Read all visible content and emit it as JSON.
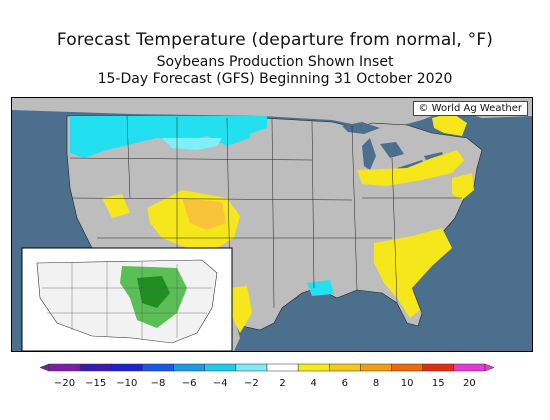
{
  "header": {
    "title": "Forecast Temperature (departure from normal, °F)",
    "subtitle": "Soybeans Production Shown Inset",
    "forecast_line": "15-Day Forecast (GFS) Beginning 31 October 2020"
  },
  "map": {
    "copyright": "© World Ag Weather",
    "colors": {
      "ocean": "#4d6f8e",
      "land_neutral": "#bdbdbd",
      "cyan": "#22e0f0",
      "light_cyan": "#7ff0f8",
      "yellow": "#f5e71c",
      "light_orange": "#f9c33a",
      "inset_crop": "#3fb63a"
    }
  },
  "colorbar": {
    "labels": [
      "−20",
      "−15",
      "−10",
      "−8",
      "−6",
      "−4",
      "−2",
      "2",
      "4",
      "6",
      "8",
      "10",
      "15",
      "20"
    ],
    "colors": [
      "#7a1fa2",
      "#3a1bb0",
      "#1f1fd6",
      "#1e55e8",
      "#1c9ae6",
      "#22c9ef",
      "#7fe9f5",
      "#ffffff",
      "#f6ea1c",
      "#f6c71c",
      "#f39c12",
      "#ef6a0e",
      "#e42b12",
      "#e63ad7"
    ]
  }
}
